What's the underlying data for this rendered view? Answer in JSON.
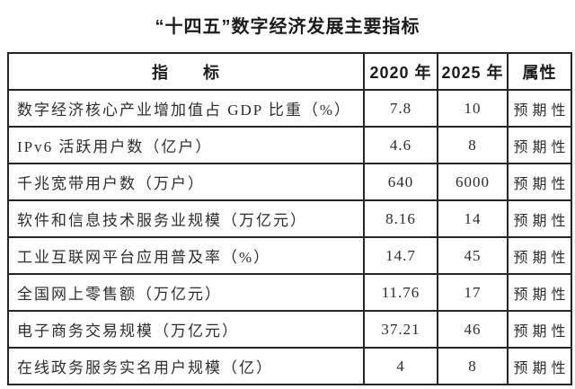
{
  "page": {
    "title": "“十四五”数字经济发展主要指标"
  },
  "table": {
    "headers": [
      "指　　标",
      "2020 年",
      "2025 年",
      "属性"
    ],
    "rows": [
      [
        "数字经济核心产业增加值占 GDP 比重（%）",
        "7.8",
        "10",
        "预期性"
      ],
      [
        "IPv6 活跃用户数（亿户）",
        "4.6",
        "8",
        "预期性"
      ],
      [
        "千兆宽带用户数（万户）",
        "640",
        "6000",
        "预期性"
      ],
      [
        "软件和信息技术服务业规模（万亿元）",
        "8.16",
        "14",
        "预期性"
      ],
      [
        "工业互联网平台应用普及率（%）",
        "14.7",
        "45",
        "预期性"
      ],
      [
        "全国网上零售额（万亿元）",
        "11.76",
        "17",
        "预期性"
      ],
      [
        "电子商务交易规模（万亿元）",
        "37.21",
        "46",
        "预期性"
      ],
      [
        "在线政务服务实名用户规模（亿）",
        "4",
        "8",
        "预期性"
      ]
    ]
  },
  "colors": {
    "background": "#ffffff",
    "border": "#262626",
    "title_text": "#1c1c1c",
    "body_text": "#2d2d2d"
  }
}
